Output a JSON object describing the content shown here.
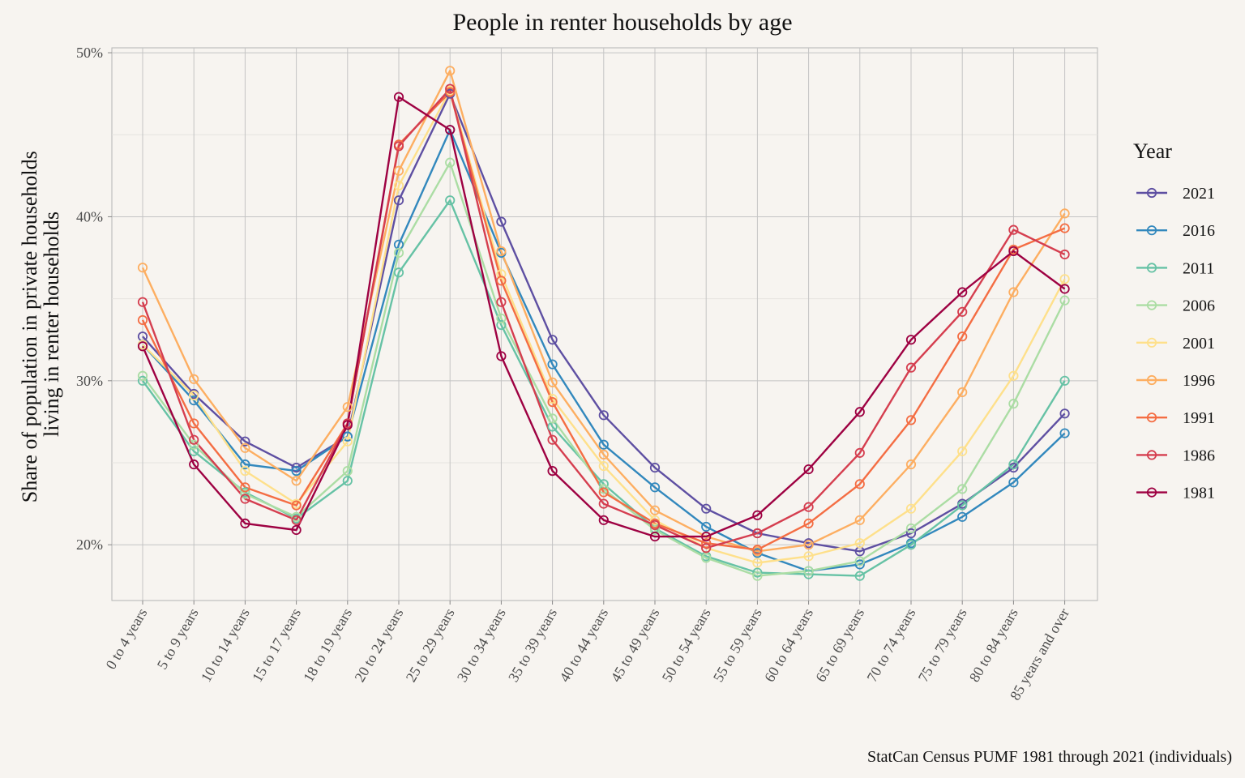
{
  "chart_data": {
    "type": "line",
    "title": "People in renter households by age",
    "xlabel": "",
    "ylabel_lines": [
      "Share of population in private households",
      "living in renter households"
    ],
    "caption": "StatCan Census PUMF 1981 through 2021 (individuals)",
    "ylim": [
      0.166,
      0.503
    ],
    "yticks": [
      0.2,
      0.3,
      0.4,
      0.5
    ],
    "ytick_labels": [
      "20%",
      "30%",
      "40%",
      "50%"
    ],
    "grid": true,
    "legend": {
      "title": "Year",
      "position": "right"
    },
    "categories": [
      "0 to 4 years",
      "5 to 9 years",
      "10 to 14 years",
      "15 to 17 years",
      "18 to 19 years",
      "20 to 24 years",
      "25 to 29 years",
      "30 to 34 years",
      "35 to 39 years",
      "40 to 44 years",
      "45 to 49 years",
      "50 to 54 years",
      "55 to 59 years",
      "60 to 64 years",
      "65 to 69 years",
      "70 to 74 years",
      "75 to 79 years",
      "80 to 84 years",
      "85 years and over"
    ],
    "series": [
      {
        "name": "1981",
        "color": "#9e0142",
        "values": [
          0.321,
          0.249,
          0.213,
          0.209,
          0.273,
          0.473,
          0.453,
          0.315,
          0.245,
          0.215,
          0.205,
          0.205,
          0.218,
          0.246,
          0.281,
          0.325,
          0.354,
          0.379,
          0.356
        ]
      },
      {
        "name": "1986",
        "color": "#d53e4f",
        "values": [
          0.348,
          0.264,
          0.228,
          0.215,
          0.274,
          0.443,
          0.478,
          0.348,
          0.264,
          0.225,
          0.212,
          0.198,
          0.207,
          0.223,
          0.256,
          0.308,
          0.342,
          0.392,
          0.377
        ]
      },
      {
        "name": "1991",
        "color": "#f46d43",
        "values": [
          0.337,
          0.274,
          0.235,
          0.224,
          0.274,
          0.444,
          0.476,
          0.361,
          0.287,
          0.232,
          0.213,
          0.201,
          0.197,
          0.213,
          0.237,
          0.276,
          0.327,
          0.38,
          0.393
        ]
      },
      {
        "name": "1996",
        "color": "#fdae61",
        "values": [
          0.369,
          0.301,
          0.259,
          0.239,
          0.284,
          0.428,
          0.489,
          0.379,
          0.299,
          0.255,
          0.221,
          0.205,
          0.196,
          0.2,
          0.215,
          0.249,
          0.293,
          0.354,
          0.402
        ]
      },
      {
        "name": "2001",
        "color": "#fee08b",
        "values": [
          0.322,
          0.291,
          0.245,
          0.225,
          0.263,
          0.419,
          0.477,
          0.365,
          0.289,
          0.248,
          0.215,
          0.198,
          0.189,
          0.193,
          0.201,
          0.222,
          0.257,
          0.303,
          0.362
        ]
      },
      {
        "name": "2006",
        "color": "#abdda4",
        "values": [
          0.303,
          0.261,
          0.231,
          0.217,
          0.245,
          0.378,
          0.433,
          0.338,
          0.277,
          0.234,
          0.209,
          0.192,
          0.181,
          0.184,
          0.19,
          0.21,
          0.234,
          0.286,
          0.349
        ]
      },
      {
        "name": "2011",
        "color": "#66c2a5",
        "values": [
          0.3,
          0.257,
          0.232,
          0.216,
          0.239,
          0.366,
          0.41,
          0.334,
          0.272,
          0.237,
          0.21,
          0.193,
          0.183,
          0.182,
          0.181,
          0.2,
          0.224,
          0.249,
          0.3
        ]
      },
      {
        "name": "2016",
        "color": "#3288bd",
        "values": [
          0.322,
          0.288,
          0.249,
          0.245,
          0.266,
          0.383,
          0.453,
          0.378,
          0.31,
          0.261,
          0.235,
          0.211,
          0.195,
          0.184,
          0.188,
          0.201,
          0.217,
          0.238,
          0.268
        ]
      },
      {
        "name": "2021",
        "color": "#5e4fa2",
        "values": [
          0.327,
          0.292,
          0.263,
          0.247,
          0.266,
          0.41,
          0.475,
          0.397,
          0.325,
          0.279,
          0.247,
          0.222,
          0.207,
          0.201,
          0.196,
          0.207,
          0.225,
          0.247,
          0.28
        ]
      }
    ],
    "legend_order": [
      "2021",
      "2016",
      "2011",
      "2006",
      "2001",
      "1996",
      "1991",
      "1986",
      "1981"
    ]
  }
}
